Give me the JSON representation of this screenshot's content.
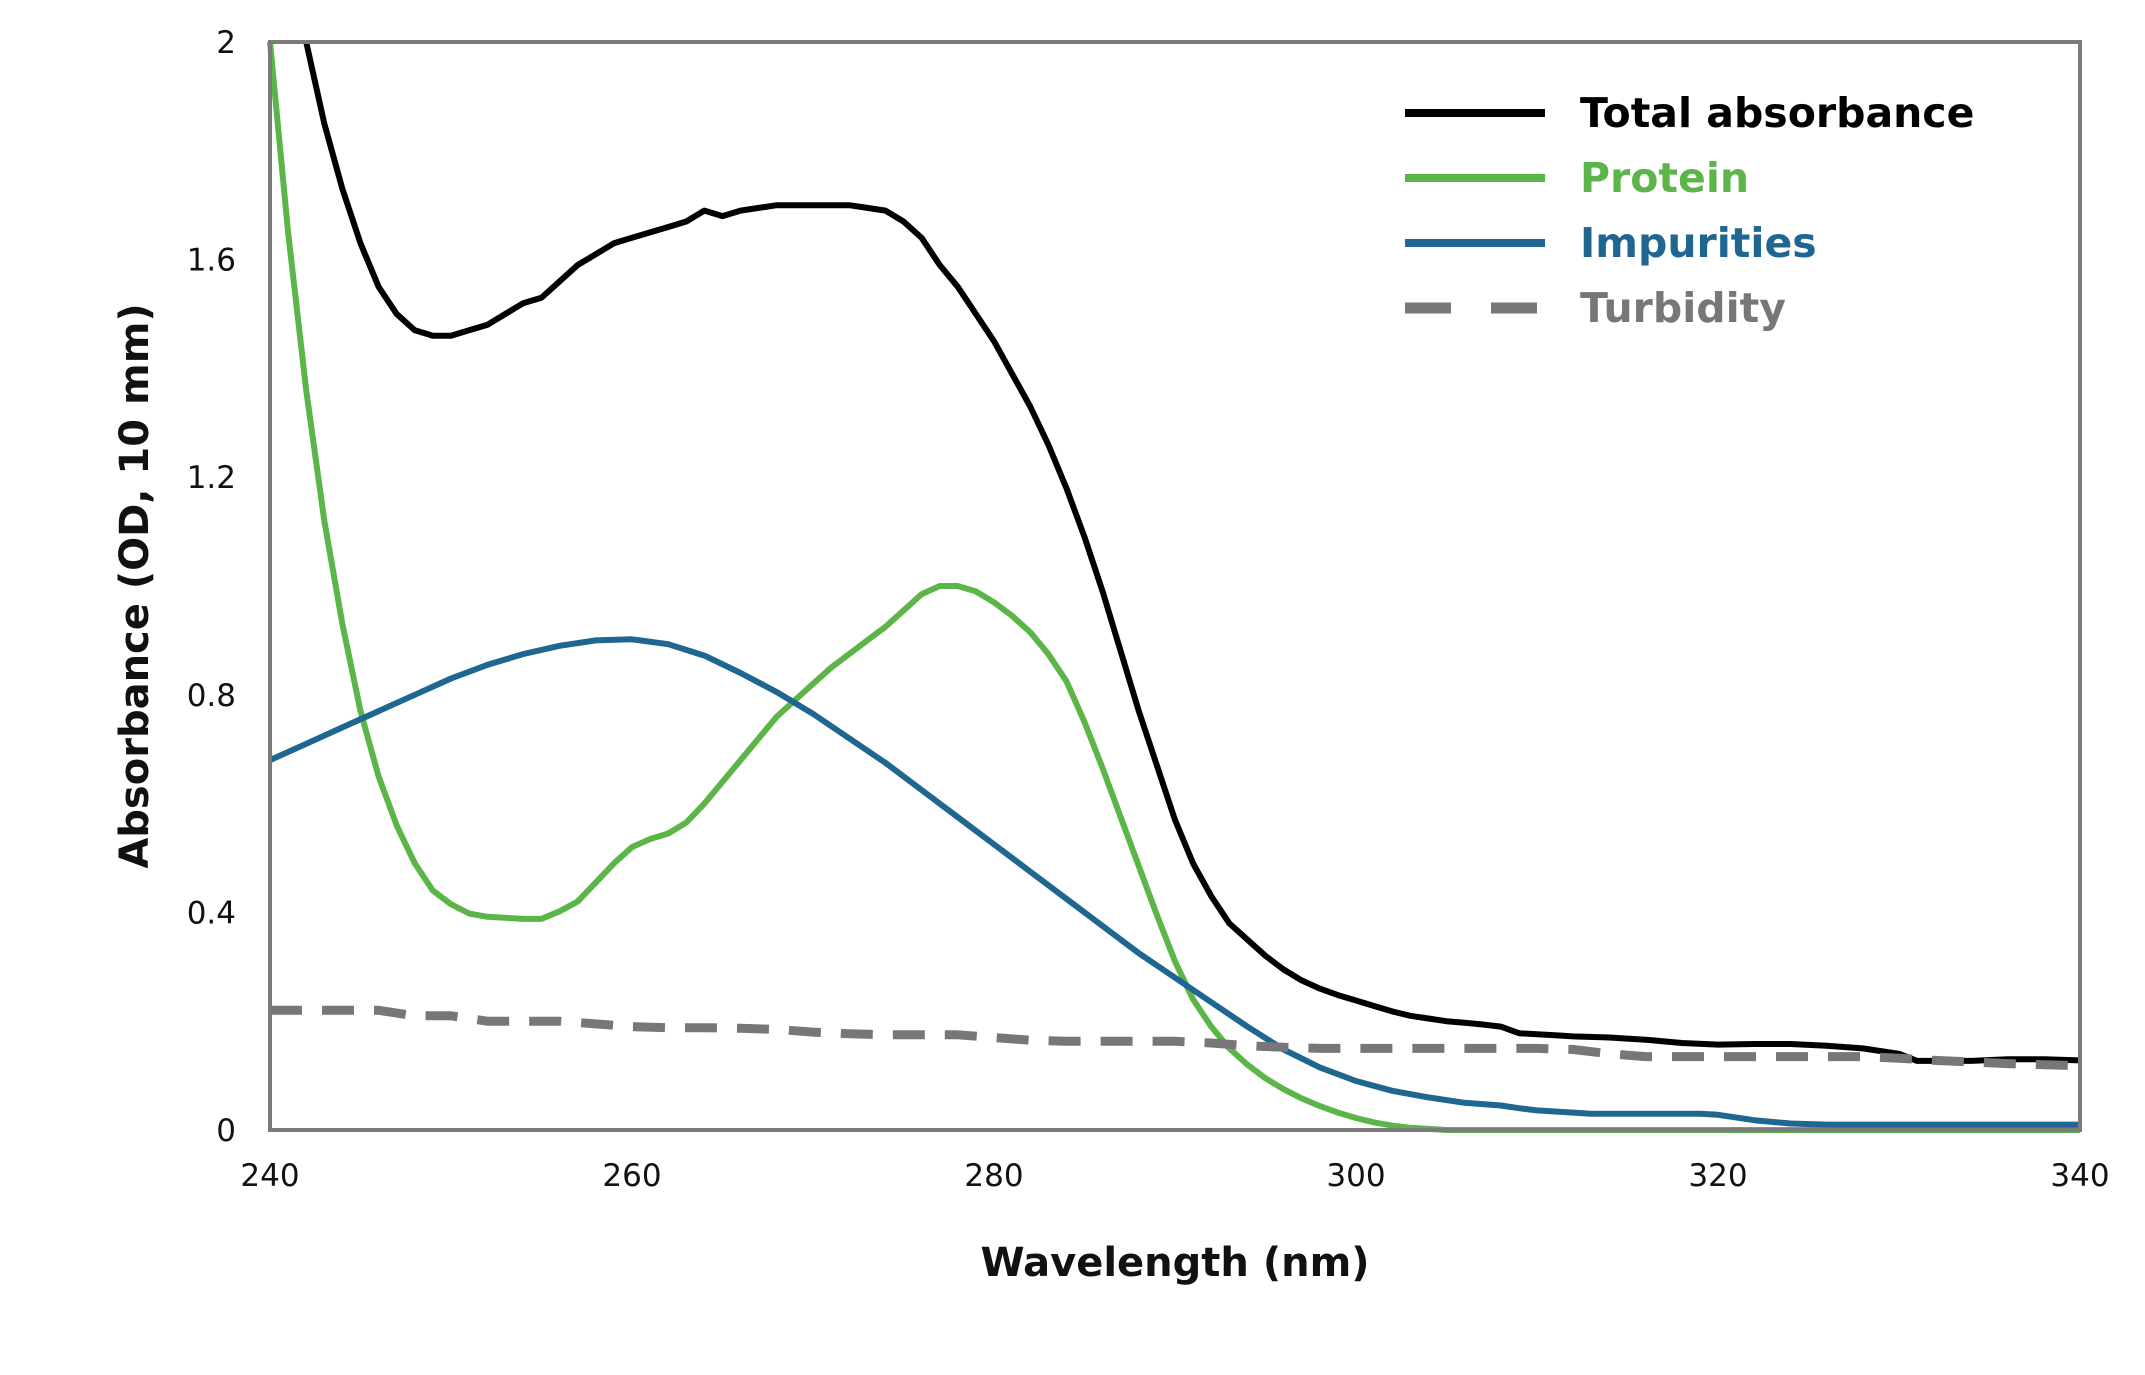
{
  "chart_data": {
    "type": "line",
    "title": "",
    "xlabel": "Wavelength (nm)",
    "ylabel": "Absorbance (OD, 10 mm)",
    "xlim": [
      240,
      340
    ],
    "ylim": [
      0,
      2
    ],
    "xticks": [
      "240",
      "260",
      "280",
      "300",
      "320",
      "340"
    ],
    "yticks": [
      "0",
      "0.4",
      "0.8",
      "1.2",
      "1.6",
      "2"
    ],
    "grid": false,
    "legend_position": "top-right",
    "series": [
      {
        "name": "Total absorbance",
        "color": "#000000",
        "style": "solid",
        "x": [
          242,
          243,
          244,
          245,
          246,
          247,
          248,
          249,
          250,
          251,
          252,
          253,
          254,
          255,
          256,
          257,
          258,
          259,
          260,
          261,
          262,
          263,
          264,
          265,
          266,
          267,
          268,
          269,
          270,
          271,
          272,
          273,
          274,
          275,
          276,
          277,
          278,
          279,
          280,
          281,
          282,
          283,
          284,
          285,
          286,
          287,
          288,
          289,
          290,
          291,
          292,
          293,
          294,
          295,
          296,
          297,
          298,
          299,
          300,
          301,
          302,
          303,
          304,
          305,
          306,
          307,
          308,
          309,
          310,
          311,
          312,
          314,
          316,
          318,
          320,
          322,
          324,
          326,
          328,
          330,
          331,
          332,
          334,
          336,
          338,
          340
        ],
        "y": [
          2.0,
          1.85,
          1.73,
          1.63,
          1.55,
          1.5,
          1.47,
          1.46,
          1.46,
          1.47,
          1.48,
          1.5,
          1.52,
          1.53,
          1.56,
          1.59,
          1.61,
          1.63,
          1.64,
          1.65,
          1.66,
          1.67,
          1.69,
          1.68,
          1.69,
          1.695,
          1.7,
          1.7,
          1.7,
          1.7,
          1.7,
          1.695,
          1.69,
          1.67,
          1.64,
          1.59,
          1.55,
          1.5,
          1.45,
          1.39,
          1.33,
          1.26,
          1.18,
          1.09,
          0.99,
          0.88,
          0.77,
          0.67,
          0.57,
          0.49,
          0.43,
          0.38,
          0.35,
          0.32,
          0.295,
          0.275,
          0.26,
          0.248,
          0.238,
          0.228,
          0.218,
          0.21,
          0.205,
          0.2,
          0.197,
          0.194,
          0.19,
          0.178,
          0.176,
          0.174,
          0.172,
          0.17,
          0.166,
          0.16,
          0.157,
          0.158,
          0.158,
          0.155,
          0.15,
          0.14,
          0.127,
          0.127,
          0.127,
          0.13,
          0.13,
          0.128
        ]
      },
      {
        "name": "Protein",
        "color": "#5cb548",
        "style": "solid",
        "x": [
          240,
          241,
          242,
          243,
          244,
          245,
          246,
          247,
          248,
          249,
          250,
          251,
          252,
          253,
          254,
          255,
          256,
          257,
          258,
          259,
          260,
          261,
          262,
          263,
          264,
          265,
          266,
          267,
          268,
          269,
          270,
          271,
          272,
          273,
          274,
          275,
          276,
          277,
          278,
          279,
          280,
          281,
          282,
          283,
          284,
          285,
          286,
          287,
          288,
          289,
          290,
          291,
          292,
          293,
          294,
          295,
          296,
          297,
          298,
          299,
          300,
          301,
          302,
          303,
          304,
          305,
          306,
          307,
          308,
          309,
          310,
          312,
          315,
          320,
          330,
          340
        ],
        "y": [
          2.0,
          1.65,
          1.36,
          1.12,
          0.93,
          0.77,
          0.65,
          0.56,
          0.49,
          0.44,
          0.415,
          0.398,
          0.392,
          0.39,
          0.388,
          0.388,
          0.402,
          0.42,
          0.455,
          0.49,
          0.52,
          0.535,
          0.545,
          0.565,
          0.6,
          0.64,
          0.68,
          0.72,
          0.76,
          0.79,
          0.82,
          0.85,
          0.875,
          0.9,
          0.925,
          0.955,
          0.985,
          1.0,
          1.0,
          0.99,
          0.97,
          0.945,
          0.915,
          0.875,
          0.825,
          0.75,
          0.665,
          0.575,
          0.485,
          0.395,
          0.31,
          0.24,
          0.19,
          0.15,
          0.12,
          0.095,
          0.075,
          0.058,
          0.044,
          0.032,
          0.022,
          0.014,
          0.008,
          0.004,
          0.002,
          0.0,
          0.0,
          0.0,
          0.0,
          0.0,
          0.0,
          0.0,
          0.0,
          0.0,
          0.0,
          0.0
        ]
      },
      {
        "name": "Impurities",
        "color": "#1f6690",
        "style": "solid",
        "x": [
          240,
          242,
          244,
          246,
          248,
          250,
          252,
          254,
          256,
          258,
          260,
          262,
          264,
          266,
          268,
          270,
          272,
          274,
          276,
          278,
          280,
          282,
          284,
          286,
          288,
          290,
          292,
          294,
          296,
          298,
          300,
          302,
          304,
          306,
          308,
          309,
          310,
          312,
          313,
          316,
          319,
          320,
          322,
          324,
          326,
          330,
          334,
          340
        ],
        "y": [
          0.68,
          0.71,
          0.74,
          0.77,
          0.8,
          0.83,
          0.855,
          0.875,
          0.89,
          0.9,
          0.902,
          0.893,
          0.872,
          0.84,
          0.805,
          0.765,
          0.72,
          0.675,
          0.625,
          0.575,
          0.525,
          0.475,
          0.425,
          0.375,
          0.325,
          0.28,
          0.235,
          0.19,
          0.148,
          0.115,
          0.09,
          0.072,
          0.06,
          0.05,
          0.045,
          0.04,
          0.036,
          0.032,
          0.03,
          0.03,
          0.03,
          0.028,
          0.018,
          0.012,
          0.01,
          0.01,
          0.01,
          0.01
        ]
      },
      {
        "name": "Turbidity",
        "color": "#77777a",
        "style": "dashed",
        "x": [
          240,
          242,
          244,
          246,
          248,
          250,
          252,
          254,
          256,
          258,
          260,
          262,
          264,
          266,
          268,
          270,
          272,
          274,
          276,
          278,
          280,
          282,
          284,
          286,
          288,
          290,
          292,
          294,
          296,
          298,
          300,
          302,
          304,
          306,
          308,
          310,
          312,
          314,
          316,
          318,
          320,
          322,
          324,
          326,
          328,
          330,
          332,
          334,
          336,
          338,
          340
        ],
        "y": [
          0.22,
          0.22,
          0.22,
          0.22,
          0.21,
          0.21,
          0.2,
          0.2,
          0.2,
          0.195,
          0.19,
          0.188,
          0.188,
          0.187,
          0.185,
          0.18,
          0.177,
          0.175,
          0.175,
          0.175,
          0.17,
          0.165,
          0.163,
          0.163,
          0.163,
          0.163,
          0.16,
          0.155,
          0.152,
          0.15,
          0.15,
          0.15,
          0.15,
          0.15,
          0.15,
          0.15,
          0.148,
          0.14,
          0.135,
          0.135,
          0.135,
          0.135,
          0.135,
          0.135,
          0.135,
          0.132,
          0.128,
          0.125,
          0.122,
          0.12,
          0.118
        ]
      }
    ]
  }
}
